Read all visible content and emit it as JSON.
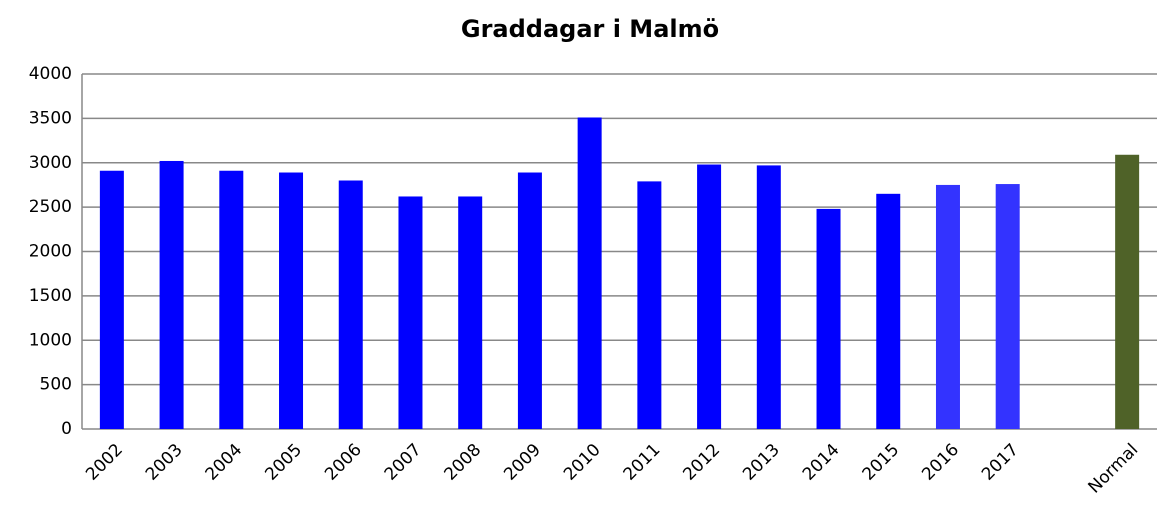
{
  "chart_data": {
    "type": "bar",
    "title": "Graddagar i Malmö",
    "categories": [
      "2002",
      "2003",
      "2004",
      "2005",
      "2006",
      "2007",
      "2008",
      "2009",
      "2010",
      "2011",
      "2012",
      "2013",
      "2014",
      "2015",
      "2016",
      "2017",
      null,
      "Normal"
    ],
    "values": [
      2910,
      3020,
      2910,
      2890,
      2800,
      2620,
      2620,
      2890,
      3510,
      2790,
      2980,
      2970,
      2480,
      2650,
      2750,
      2760,
      null,
      3090
    ],
    "colors": [
      "#0000ff",
      "#0000ff",
      "#0000ff",
      "#0000ff",
      "#0000ff",
      "#0000ff",
      "#0000ff",
      "#0000ff",
      "#0000ff",
      "#0000ff",
      "#0000ff",
      "#0000ff",
      "#0000ff",
      "#0000ff",
      "#3333ff",
      "#3333ff",
      null,
      "#4f6228"
    ],
    "ylim": [
      0,
      4000
    ],
    "yticks": [
      0,
      500,
      1000,
      1500,
      2000,
      2500,
      3000,
      3500,
      4000
    ],
    "grid": true
  }
}
